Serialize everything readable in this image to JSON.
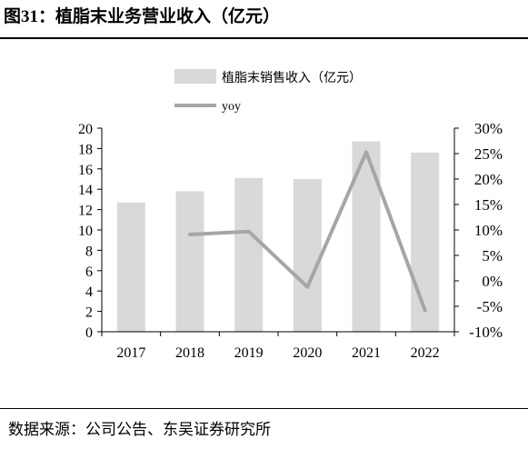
{
  "figure": {
    "label": "图31：",
    "title": "植脂末业务营业收入（亿元）"
  },
  "source_note": "数据来源：公司公告、东吴证券研究所",
  "chart_data": {
    "type": "bar",
    "categories": [
      "2017",
      "2018",
      "2019",
      "2020",
      "2021",
      "2022"
    ],
    "series": [
      {
        "name": "植脂末销售收入（亿元）",
        "type": "bar",
        "axis": "left",
        "color": "#d9d9d9",
        "values": [
          12.7,
          13.8,
          15.1,
          15.0,
          18.7,
          17.6
        ]
      },
      {
        "name": "yoy",
        "type": "line",
        "axis": "right",
        "color": "#a6a6a6",
        "values": [
          null,
          0.091,
          0.097,
          -0.012,
          0.253,
          -0.058
        ]
      }
    ],
    "left_axis": {
      "ylim": [
        0,
        20
      ],
      "ticks": [
        "0",
        "2",
        "4",
        "6",
        "8",
        "10",
        "12",
        "14",
        "16",
        "18",
        "20"
      ]
    },
    "right_axis": {
      "ylim": [
        -0.1,
        0.3
      ],
      "ticks": [
        "-10%",
        "-5%",
        "0%",
        "5%",
        "10%",
        "15%",
        "20%",
        "25%",
        "30%"
      ]
    },
    "legend_position": "top-center",
    "grid": false
  }
}
